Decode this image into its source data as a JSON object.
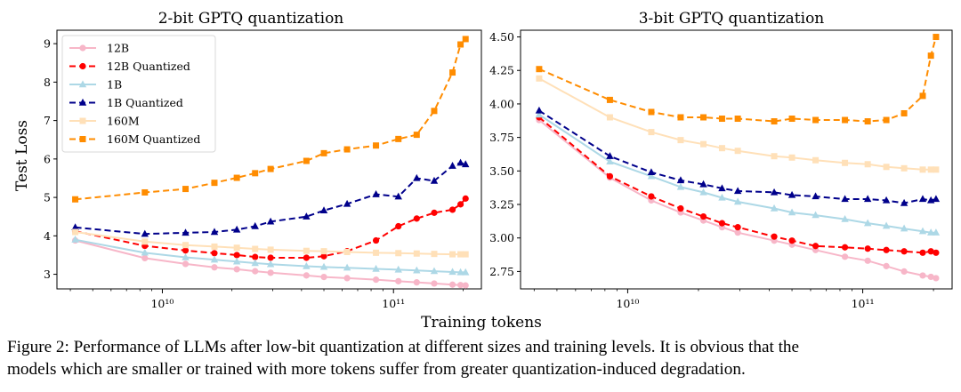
{
  "figure": {
    "shared_xlabel": "Training tokens",
    "caption": [
      "Figure 2: Performance of LLMs after low-bit quantization at different sizes and training levels. It is obvious that the",
      "models which are smaller or trained with more tokens suffer from greater quantization-induced degradation."
    ]
  },
  "chart_data": [
    {
      "type": "line",
      "title": "2-bit GPTQ quantization",
      "xlabel": "Training tokens",
      "ylabel": "Test Loss",
      "xscale": "log",
      "xlim": [
        3500000000.0,
        240000000000.0
      ],
      "ylim": [
        2.62,
        9.35
      ],
      "yticks": [
        3,
        4,
        5,
        6,
        7,
        8,
        9
      ],
      "xticks": [
        {
          "value": 10000000000.0,
          "label": "10¹⁰"
        },
        {
          "value": 100000000000.0,
          "label": "10¹¹"
        }
      ],
      "grid": false,
      "legend": "top-left",
      "series": [
        {
          "name": "12B",
          "color": "#f7b6c8",
          "dash": "solid",
          "marker": "circle",
          "x": [
            4200000000.0,
            8400000000.0,
            12600000000.0,
            16800000000.0,
            21000000000.0,
            25200000000.0,
            29400000000.0,
            42000000000.0,
            50000000000.0,
            63000000000.0,
            84000000000.0,
            105000000000.0,
            126000000000.0,
            150000000000.0,
            180000000000.0,
            195000000000.0,
            205000000000.0
          ],
          "values": [
            3.88,
            3.42,
            3.27,
            3.18,
            3.13,
            3.08,
            3.04,
            2.97,
            2.93,
            2.9,
            2.86,
            2.82,
            2.79,
            2.76,
            2.73,
            2.72,
            2.71
          ]
        },
        {
          "name": "12B Quantized",
          "color": "#ff0000",
          "dash": "dashed",
          "marker": "circle",
          "x": [
            4200000000.0,
            8400000000.0,
            12600000000.0,
            16800000000.0,
            21000000000.0,
            25200000000.0,
            29400000000.0,
            42000000000.0,
            50000000000.0,
            63000000000.0,
            84000000000.0,
            105000000000.0,
            126000000000.0,
            150000000000.0,
            180000000000.0,
            195000000000.0,
            205000000000.0
          ],
          "values": [
            4.12,
            3.74,
            3.62,
            3.55,
            3.5,
            3.45,
            3.43,
            3.43,
            3.47,
            3.6,
            3.88,
            4.25,
            4.45,
            4.6,
            4.68,
            4.82,
            4.97
          ]
        },
        {
          "name": "1B",
          "color": "#add8e6",
          "dash": "solid",
          "marker": "triangle",
          "x": [
            4200000000.0,
            8400000000.0,
            12600000000.0,
            16800000000.0,
            21000000000.0,
            25200000000.0,
            29400000000.0,
            42000000000.0,
            50000000000.0,
            63000000000.0,
            84000000000.0,
            105000000000.0,
            126000000000.0,
            150000000000.0,
            180000000000.0,
            195000000000.0,
            205000000000.0
          ],
          "values": [
            3.9,
            3.56,
            3.44,
            3.38,
            3.33,
            3.29,
            3.26,
            3.21,
            3.19,
            3.17,
            3.14,
            3.12,
            3.1,
            3.08,
            3.06,
            3.05,
            3.05
          ]
        },
        {
          "name": "1B Quantized",
          "color": "#00008b",
          "dash": "dashed",
          "marker": "triangle",
          "x": [
            4200000000.0,
            8400000000.0,
            12600000000.0,
            16800000000.0,
            21000000000.0,
            25200000000.0,
            29400000000.0,
            42000000000.0,
            50000000000.0,
            63000000000.0,
            84000000000.0,
            105000000000.0,
            126000000000.0,
            150000000000.0,
            180000000000.0,
            195000000000.0,
            205000000000.0
          ],
          "values": [
            4.22,
            4.05,
            4.08,
            4.1,
            4.16,
            4.25,
            4.37,
            4.5,
            4.66,
            4.83,
            5.08,
            5.02,
            5.5,
            5.43,
            5.82,
            5.9,
            5.86
          ]
        },
        {
          "name": "160M",
          "color": "#ffe0b8",
          "dash": "solid",
          "marker": "square",
          "x": [
            4200000000.0,
            8400000000.0,
            12600000000.0,
            16800000000.0,
            21000000000.0,
            25200000000.0,
            29400000000.0,
            42000000000.0,
            50000000000.0,
            63000000000.0,
            84000000000.0,
            105000000000.0,
            126000000000.0,
            150000000000.0,
            180000000000.0,
            195000000000.0,
            205000000000.0
          ],
          "values": [
            4.1,
            3.85,
            3.76,
            3.72,
            3.69,
            3.66,
            3.64,
            3.61,
            3.6,
            3.58,
            3.56,
            3.55,
            3.54,
            3.53,
            3.52,
            3.52,
            3.52
          ]
        },
        {
          "name": "160M Quantized",
          "color": "#ff8c00",
          "dash": "dashed",
          "marker": "square",
          "x": [
            4200000000.0,
            8400000000.0,
            12600000000.0,
            16800000000.0,
            21000000000.0,
            25200000000.0,
            29400000000.0,
            42000000000.0,
            50000000000.0,
            63000000000.0,
            84000000000.0,
            105000000000.0,
            126000000000.0,
            150000000000.0,
            180000000000.0,
            195000000000.0,
            205000000000.0
          ],
          "values": [
            4.95,
            5.13,
            5.22,
            5.38,
            5.51,
            5.63,
            5.74,
            5.95,
            6.15,
            6.25,
            6.35,
            6.52,
            6.63,
            7.25,
            8.25,
            8.98,
            9.12
          ]
        }
      ]
    },
    {
      "type": "line",
      "title": "3-bit GPTQ quantization",
      "xlabel": "Training tokens",
      "ylabel": "",
      "xscale": "log",
      "xlim": [
        3500000000.0,
        240000000000.0
      ],
      "ylim": [
        2.62,
        4.55
      ],
      "yticks": [
        2.75,
        3.0,
        3.25,
        3.5,
        3.75,
        4.0,
        4.25,
        4.5
      ],
      "ytick_labels": [
        "2.75",
        "3.00",
        "3.25",
        "3.50",
        "3.75",
        "4.00",
        "4.25",
        "4.50"
      ],
      "xticks": [
        {
          "value": 10000000000.0,
          "label": "10¹⁰"
        },
        {
          "value": 100000000000.0,
          "label": "10¹¹"
        }
      ],
      "grid": false,
      "legend": "none",
      "series": [
        {
          "name": "12B",
          "color": "#f7b6c8",
          "dash": "solid",
          "marker": "circle",
          "x": [
            4200000000.0,
            8400000000.0,
            12600000000.0,
            16800000000.0,
            21000000000.0,
            25200000000.0,
            29400000000.0,
            42000000000.0,
            50000000000.0,
            63000000000.0,
            84000000000.0,
            105000000000.0,
            126000000000.0,
            150000000000.0,
            180000000000.0,
            195000000000.0,
            205000000000.0
          ],
          "values": [
            3.88,
            3.45,
            3.28,
            3.19,
            3.13,
            3.08,
            3.04,
            2.98,
            2.95,
            2.91,
            2.86,
            2.83,
            2.79,
            2.75,
            2.72,
            2.71,
            2.7
          ]
        },
        {
          "name": "12B Quantized",
          "color": "#ff0000",
          "dash": "dashed",
          "marker": "circle",
          "x": [
            4200000000.0,
            8400000000.0,
            12600000000.0,
            16800000000.0,
            21000000000.0,
            25200000000.0,
            29400000000.0,
            42000000000.0,
            50000000000.0,
            63000000000.0,
            84000000000.0,
            105000000000.0,
            126000000000.0,
            150000000000.0,
            180000000000.0,
            195000000000.0,
            205000000000.0
          ],
          "values": [
            3.9,
            3.46,
            3.31,
            3.22,
            3.16,
            3.11,
            3.08,
            3.01,
            2.98,
            2.94,
            2.93,
            2.92,
            2.91,
            2.9,
            2.89,
            2.9,
            2.89
          ]
        },
        {
          "name": "1B",
          "color": "#add8e6",
          "dash": "solid",
          "marker": "triangle",
          "x": [
            4200000000.0,
            8400000000.0,
            12600000000.0,
            16800000000.0,
            21000000000.0,
            25200000000.0,
            29400000000.0,
            42000000000.0,
            50000000000.0,
            63000000000.0,
            84000000000.0,
            105000000000.0,
            126000000000.0,
            150000000000.0,
            180000000000.0,
            195000000000.0,
            205000000000.0
          ],
          "values": [
            3.92,
            3.57,
            3.46,
            3.38,
            3.34,
            3.3,
            3.27,
            3.22,
            3.19,
            3.17,
            3.14,
            3.11,
            3.09,
            3.07,
            3.05,
            3.04,
            3.04
          ]
        },
        {
          "name": "1B Quantized",
          "color": "#00008b",
          "dash": "dashed",
          "marker": "triangle",
          "x": [
            4200000000.0,
            8400000000.0,
            12600000000.0,
            16800000000.0,
            21000000000.0,
            25200000000.0,
            29400000000.0,
            42000000000.0,
            50000000000.0,
            63000000000.0,
            84000000000.0,
            105000000000.0,
            126000000000.0,
            150000000000.0,
            180000000000.0,
            195000000000.0,
            205000000000.0
          ],
          "values": [
            3.95,
            3.61,
            3.49,
            3.43,
            3.4,
            3.37,
            3.35,
            3.34,
            3.32,
            3.31,
            3.29,
            3.29,
            3.28,
            3.26,
            3.29,
            3.28,
            3.29
          ]
        },
        {
          "name": "160M",
          "color": "#ffe0b8",
          "dash": "solid",
          "marker": "square",
          "x": [
            4200000000.0,
            8400000000.0,
            12600000000.0,
            16800000000.0,
            21000000000.0,
            25200000000.0,
            29400000000.0,
            42000000000.0,
            50000000000.0,
            63000000000.0,
            84000000000.0,
            105000000000.0,
            126000000000.0,
            150000000000.0,
            180000000000.0,
            195000000000.0,
            205000000000.0
          ],
          "values": [
            4.19,
            3.9,
            3.79,
            3.73,
            3.7,
            3.67,
            3.65,
            3.61,
            3.6,
            3.58,
            3.56,
            3.55,
            3.53,
            3.52,
            3.51,
            3.51,
            3.51
          ]
        },
        {
          "name": "160M Quantized",
          "color": "#ff8c00",
          "dash": "dashed",
          "marker": "square",
          "x": [
            4200000000.0,
            8400000000.0,
            12600000000.0,
            16800000000.0,
            21000000000.0,
            25200000000.0,
            29400000000.0,
            42000000000.0,
            50000000000.0,
            63000000000.0,
            84000000000.0,
            105000000000.0,
            126000000000.0,
            150000000000.0,
            180000000000.0,
            195000000000.0,
            205000000000.0
          ],
          "values": [
            4.26,
            4.03,
            3.94,
            3.9,
            3.9,
            3.89,
            3.89,
            3.87,
            3.89,
            3.88,
            3.88,
            3.87,
            3.88,
            3.93,
            4.06,
            4.36,
            4.5
          ]
        }
      ]
    }
  ]
}
